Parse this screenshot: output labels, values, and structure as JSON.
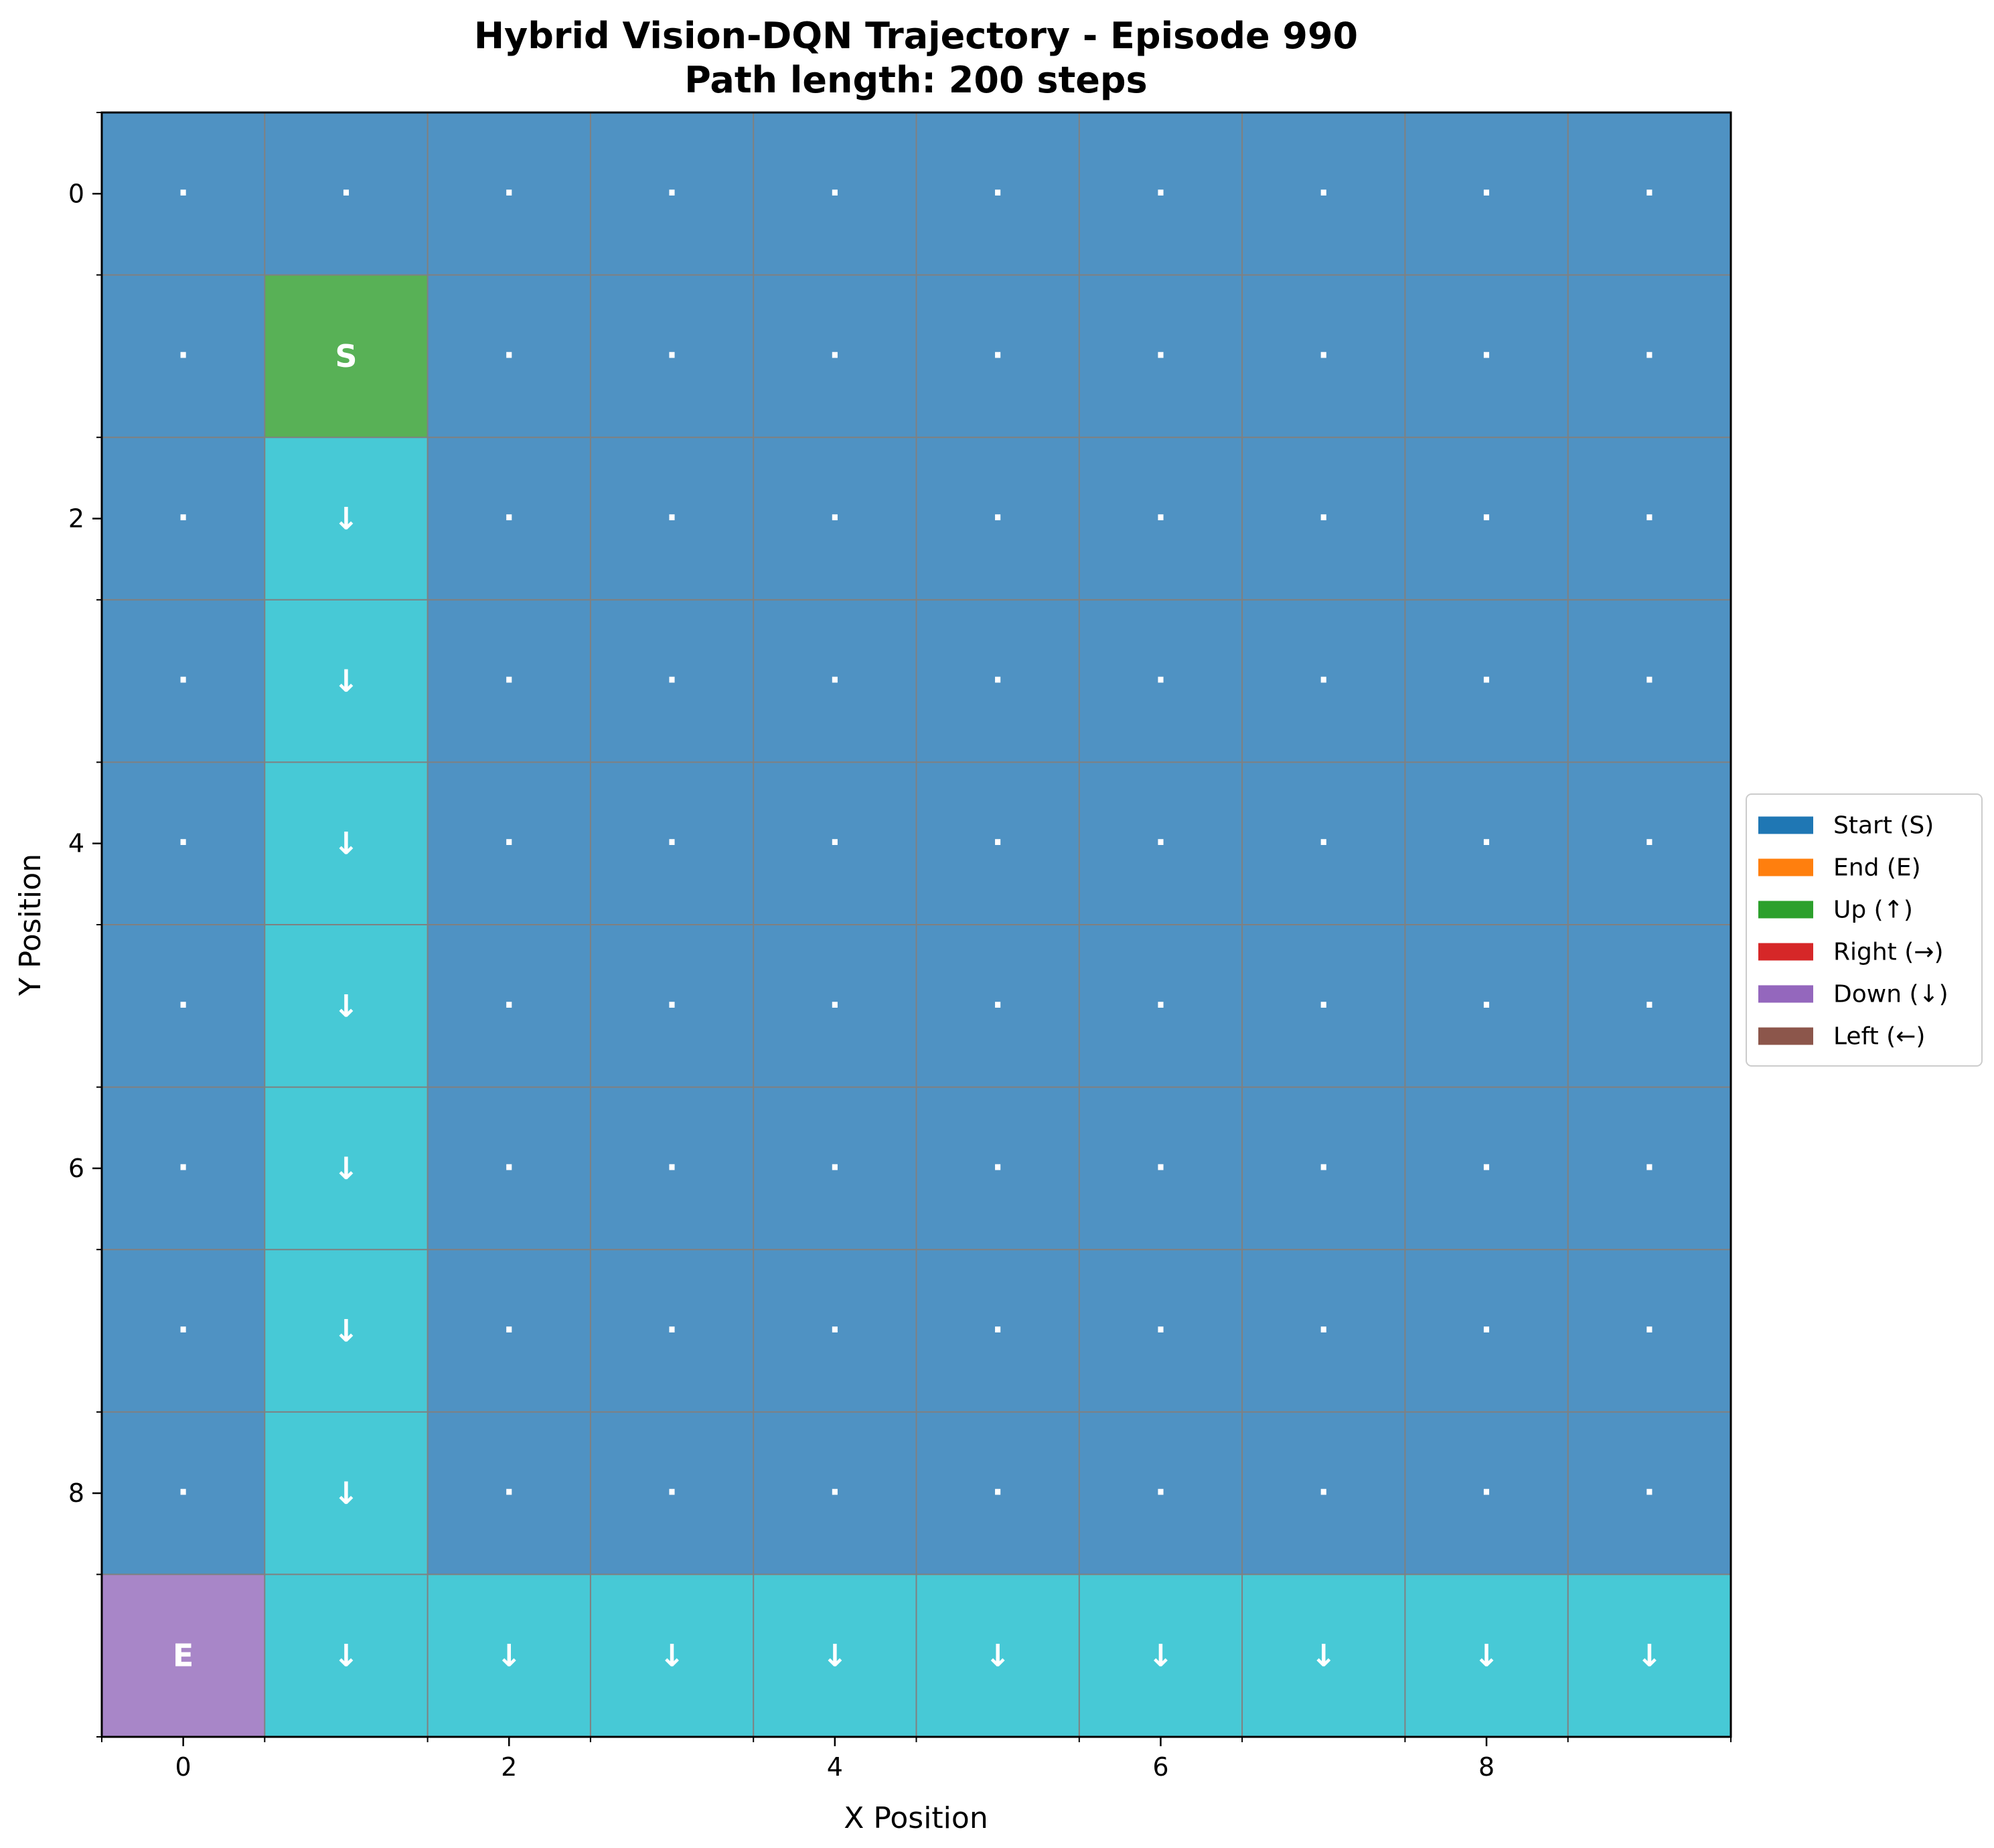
{
  "chart_data": {
    "type": "heatmap",
    "title_line1": "Hybrid Vision-DQN Trajectory - Episode 990",
    "title_line2": "Path length: 200 steps",
    "xlabel": "X Position",
    "ylabel": "Y Position",
    "grid_size": [
      10,
      10
    ],
    "xlim": [
      -0.5,
      9.5
    ],
    "ylim": [
      9.5,
      -0.5
    ],
    "y_axis_inverted": true,
    "x_ticks": [
      0,
      2,
      4,
      6,
      8
    ],
    "x_tick_labels": [
      "0",
      "2",
      "4",
      "6",
      "8"
    ],
    "y_ticks": [
      0,
      2,
      4,
      6,
      8
    ],
    "y_tick_labels": [
      "0",
      "2",
      "4",
      "6",
      "8"
    ],
    "grid": true,
    "background_cell_color": "#4f92c3",
    "colors": {
      "start": "#58b156",
      "end": "#a886c8",
      "down": "#47c9d6",
      "empty_marker": "#ffffff",
      "gridline": "#808080"
    },
    "empty_cell_symbol": "·",
    "start": {
      "x": 1,
      "y": 1,
      "label": "S"
    },
    "end": {
      "x": 0,
      "y": 9,
      "label": "E"
    },
    "path_cells": [
      {
        "x": 1,
        "y": 2,
        "action": "down",
        "symbol": "↓"
      },
      {
        "x": 1,
        "y": 3,
        "action": "down",
        "symbol": "↓"
      },
      {
        "x": 1,
        "y": 4,
        "action": "down",
        "symbol": "↓"
      },
      {
        "x": 1,
        "y": 5,
        "action": "down",
        "symbol": "↓"
      },
      {
        "x": 1,
        "y": 6,
        "action": "down",
        "symbol": "↓"
      },
      {
        "x": 1,
        "y": 7,
        "action": "down",
        "symbol": "↓"
      },
      {
        "x": 1,
        "y": 8,
        "action": "down",
        "symbol": "↓"
      },
      {
        "x": 1,
        "y": 9,
        "action": "down",
        "symbol": "↓"
      },
      {
        "x": 2,
        "y": 9,
        "action": "down",
        "symbol": "↓"
      },
      {
        "x": 3,
        "y": 9,
        "action": "down",
        "symbol": "↓"
      },
      {
        "x": 4,
        "y": 9,
        "action": "down",
        "symbol": "↓"
      },
      {
        "x": 5,
        "y": 9,
        "action": "down",
        "symbol": "↓"
      },
      {
        "x": 6,
        "y": 9,
        "action": "down",
        "symbol": "↓"
      },
      {
        "x": 7,
        "y": 9,
        "action": "down",
        "symbol": "↓"
      },
      {
        "x": 8,
        "y": 9,
        "action": "down",
        "symbol": "↓"
      },
      {
        "x": 9,
        "y": 9,
        "action": "down",
        "symbol": "↓"
      }
    ],
    "legend": {
      "placement": "center-right outside",
      "entries": [
        {
          "label": "Start (S)",
          "color": "#1f77b4"
        },
        {
          "label": "End (E)",
          "color": "#ff7f0e"
        },
        {
          "label": "Up (↑)",
          "color": "#2ca02c"
        },
        {
          "label": "Right (→)",
          "color": "#d62728"
        },
        {
          "label": "Down (↓)",
          "color": "#9467bd"
        },
        {
          "label": "Left (←)",
          "color": "#8c564b"
        }
      ]
    }
  }
}
